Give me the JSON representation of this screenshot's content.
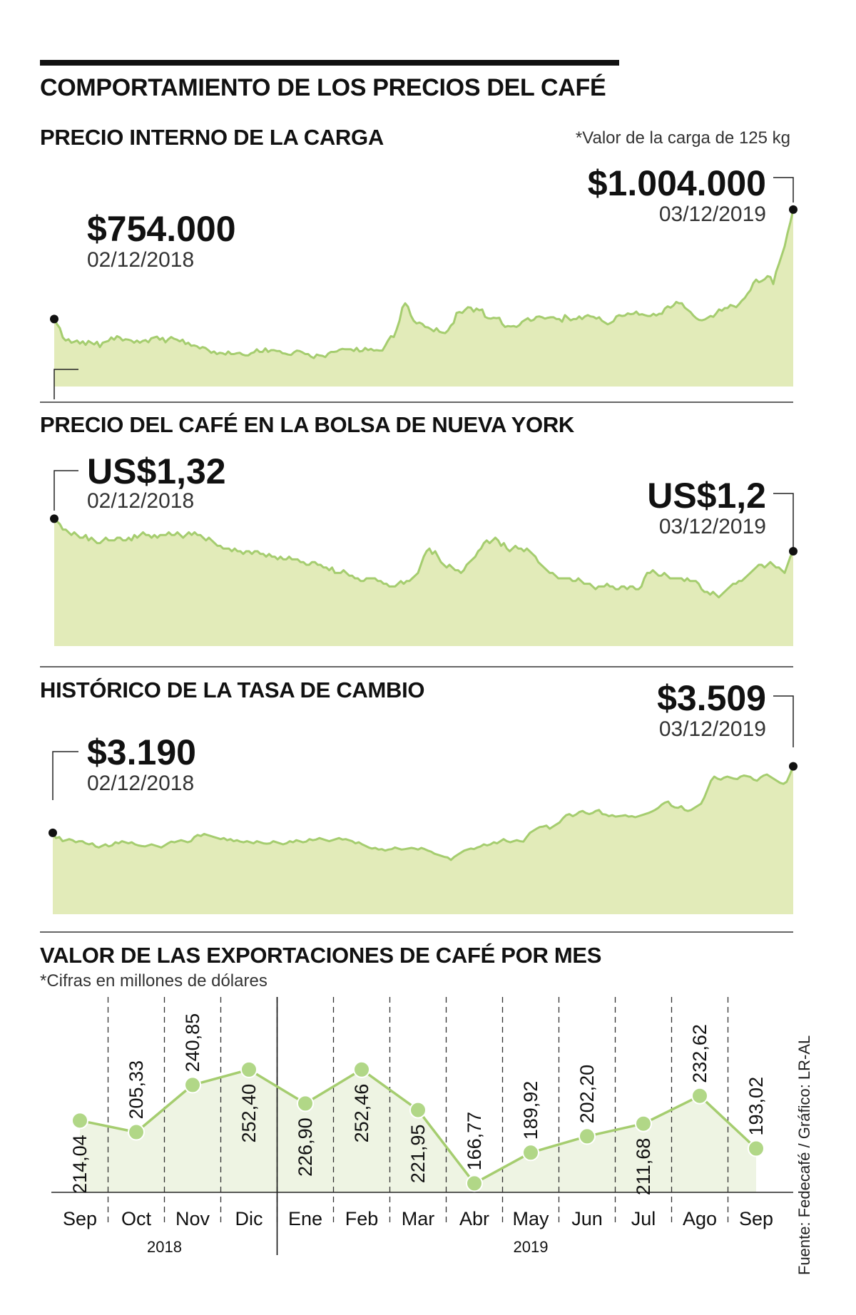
{
  "title": "COMPORTAMIENTO DE LOS PRECIOS DEL CAFÉ",
  "source": "Fuente: Fedecafé / Gráfico: LR-AL",
  "colors": {
    "fill": "#e2ebb9",
    "line": "#a5cd6f",
    "marker": "#b1d787",
    "bars_fill": "#eef4e3",
    "text": "#111111"
  },
  "charts": {
    "carga": {
      "title": "PRECIO INTERNO DE LA CARGA",
      "note": "*Valor de la carga de 125 kg",
      "start": {
        "value": "$754.000",
        "date": "02/12/2018"
      },
      "end": {
        "value": "$1.004.000",
        "date": "03/12/2019"
      }
    },
    "bolsa": {
      "title": "PRECIO DEL CAFÉ EN LA BOLSA DE NUEVA YORK",
      "start": {
        "value": "US$1,32",
        "date": "02/12/2018"
      },
      "end": {
        "value": "US$1,2",
        "date": "03/12/2019"
      }
    },
    "tasa": {
      "title": "HISTÓRICO DE LA TASA DE CAMBIO",
      "start": {
        "value": "$3.190",
        "date": "02/12/2018"
      },
      "end": {
        "value": "$3.509",
        "date": "03/12/2019"
      }
    },
    "exportaciones": {
      "title": "VALOR DE LAS EXPORTACIONES DE CAFÉ POR MES",
      "note": "*Cifras en millones de dólares"
    }
  },
  "chart_data": [
    {
      "type": "area",
      "title": "PRECIO INTERNO DE LA CARGA",
      "x_start": "02/12/2018",
      "x_end": "03/12/2019",
      "ylim": [
        600000,
        1020000
      ],
      "values": [
        754000,
        742000,
        733000,
        712000,
        705000,
        708000,
        700000,
        702000,
        705000,
        698000,
        703000,
        695000,
        704000,
        700000,
        696000,
        702000,
        690000,
        700000,
        702000,
        704000,
        712000,
        707000,
        715000,
        712000,
        705000,
        708000,
        707000,
        705000,
        700000,
        705000,
        700000,
        704000,
        706000,
        701000,
        710000,
        712000,
        714000,
        707000,
        711000,
        701000,
        708000,
        713000,
        709000,
        707000,
        703000,
        707000,
        697000,
        700000,
        693000,
        694000,
        692000,
        687000,
        690000,
        688000,
        683000,
        677000,
        680000,
        674000,
        677000,
        676000,
        673000,
        680000,
        674000,
        674000,
        676000,
        677000,
        673000,
        671000,
        671000,
        676000,
        678000,
        685000,
        679000,
        679000,
        687000,
        679000,
        683000,
        683000,
        681000,
        681000,
        676000,
        675000,
        673000,
        672000,
        678000,
        682000,
        681000,
        678000,
        674000,
        674000,
        668000,
        665000,
        673000,
        671000,
        670000,
        667000,
        675000,
        679000,
        679000,
        680000,
        684000,
        686000,
        685000,
        685000,
        685000,
        681000,
        688000,
        680000,
        681000,
        688000,
        683000,
        686000,
        682000,
        683000,
        682000,
        682000,
        693000,
        705000,
        715000,
        713000,
        730000,
        750000,
        780000,
        790000,
        782000,
        762000,
        750000,
        744000,
        746000,
        743000,
        736000,
        735000,
        731000,
        726000,
        733000,
        725000,
        723000,
        722000,
        728000,
        739000,
        745000,
        768000,
        770000,
        768000,
        775000,
        781000,
        780000,
        771000,
        778000,
        774000,
        776000,
        759000,
        756000,
        755000,
        757000,
        756000,
        757000,
        743000,
        736000,
        738000,
        737000,
        738000,
        736000,
        740000,
        748000,
        752000,
        756000,
        750000,
        752000,
        759000,
        760000,
        758000,
        755000,
        757000,
        758000,
        758000,
        754000,
        754000,
        748000,
        763000,
        757000,
        751000,
        754000,
        754000,
        760000,
        754000,
        760000,
        763000,
        760000,
        759000,
        755000,
        758000,
        750000,
        746000,
        742000,
        745000,
        749000,
        760000,
        763000,
        761000,
        762000,
        767000,
        765000,
        766000,
        771000,
        764000,
        765000,
        763000,
        761000,
        761000,
        766000,
        762000,
        766000,
        766000,
        778000,
        783000,
        780000,
        785000,
        793000,
        790000,
        790000,
        780000,
        775000,
        770000,
        762000,
        756000,
        752000,
        751000,
        753000,
        757000,
        761000,
        759000,
        767000,
        776000,
        773000,
        779000,
        779000,
        786000,
        784000,
        781000,
        788000,
        796000,
        802000,
        812000,
        820000,
        836000,
        844000,
        838000,
        841000,
        845000,
        852000,
        850000,
        834000,
        862000,
        880000,
        900000,
        920000,
        950000,
        975000,
        1004000
      ]
    },
    {
      "type": "area",
      "title": "PRECIO DEL CAFÉ EN LA BOLSA DE NUEVA YORK",
      "x_start": "02/12/2018",
      "x_end": "03/12/2019",
      "ylim": [
        0.85,
        1.35
      ],
      "values": [
        1.32,
        1.31,
        1.3,
        1.28,
        1.28,
        1.27,
        1.26,
        1.27,
        1.26,
        1.25,
        1.25,
        1.26,
        1.24,
        1.25,
        1.24,
        1.23,
        1.23,
        1.24,
        1.25,
        1.24,
        1.24,
        1.24,
        1.25,
        1.25,
        1.24,
        1.24,
        1.25,
        1.24,
        1.26,
        1.25,
        1.26,
        1.27,
        1.26,
        1.26,
        1.25,
        1.26,
        1.25,
        1.26,
        1.26,
        1.26,
        1.27,
        1.26,
        1.26,
        1.27,
        1.26,
        1.25,
        1.26,
        1.27,
        1.26,
        1.27,
        1.26,
        1.26,
        1.25,
        1.24,
        1.25,
        1.24,
        1.23,
        1.22,
        1.22,
        1.21,
        1.21,
        1.21,
        1.2,
        1.21,
        1.2,
        1.2,
        1.19,
        1.2,
        1.2,
        1.19,
        1.2,
        1.2,
        1.19,
        1.19,
        1.18,
        1.19,
        1.18,
        1.18,
        1.17,
        1.18,
        1.17,
        1.17,
        1.18,
        1.17,
        1.17,
        1.17,
        1.16,
        1.16,
        1.15,
        1.15,
        1.16,
        1.16,
        1.15,
        1.15,
        1.14,
        1.14,
        1.13,
        1.14,
        1.12,
        1.12,
        1.12,
        1.13,
        1.12,
        1.11,
        1.11,
        1.1,
        1.1,
        1.09,
        1.09,
        1.1,
        1.1,
        1.1,
        1.1,
        1.09,
        1.09,
        1.08,
        1.08,
        1.07,
        1.07,
        1.07,
        1.08,
        1.09,
        1.08,
        1.09,
        1.09,
        1.1,
        1.11,
        1.12,
        1.15,
        1.18,
        1.2,
        1.21,
        1.19,
        1.2,
        1.18,
        1.16,
        1.15,
        1.14,
        1.15,
        1.14,
        1.13,
        1.13,
        1.12,
        1.13,
        1.15,
        1.16,
        1.17,
        1.18,
        1.2,
        1.21,
        1.23,
        1.24,
        1.23,
        1.24,
        1.25,
        1.24,
        1.22,
        1.23,
        1.21,
        1.2,
        1.21,
        1.22,
        1.21,
        1.21,
        1.2,
        1.21,
        1.2,
        1.19,
        1.18,
        1.16,
        1.15,
        1.14,
        1.13,
        1.12,
        1.12,
        1.11,
        1.1,
        1.1,
        1.1,
        1.1,
        1.1,
        1.09,
        1.09,
        1.1,
        1.09,
        1.08,
        1.08,
        1.08,
        1.07,
        1.06,
        1.07,
        1.07,
        1.07,
        1.08,
        1.07,
        1.07,
        1.06,
        1.06,
        1.07,
        1.07,
        1.06,
        1.07,
        1.07,
        1.06,
        1.06,
        1.07,
        1.1,
        1.12,
        1.12,
        1.13,
        1.12,
        1.11,
        1.11,
        1.12,
        1.11,
        1.1,
        1.1,
        1.1,
        1.1,
        1.1,
        1.09,
        1.1,
        1.09,
        1.09,
        1.09,
        1.08,
        1.06,
        1.05,
        1.05,
        1.04,
        1.05,
        1.04,
        1.03,
        1.04,
        1.05,
        1.06,
        1.07,
        1.08,
        1.08,
        1.09,
        1.09,
        1.1,
        1.11,
        1.12,
        1.13,
        1.14,
        1.15,
        1.15,
        1.14,
        1.15,
        1.16,
        1.15,
        1.14,
        1.14,
        1.13,
        1.12,
        1.15,
        1.18,
        1.2
      ]
    },
    {
      "type": "area",
      "title": "HISTÓRICO DE LA TASA DE CAMBIO",
      "x_start": "02/12/2018",
      "x_end": "03/12/2019",
      "ylim": [
        2800,
        3600
      ],
      "values": [
        3190,
        3165,
        3170,
        3150,
        3155,
        3160,
        3155,
        3145,
        3150,
        3150,
        3140,
        3135,
        3140,
        3125,
        3120,
        3128,
        3135,
        3125,
        3130,
        3145,
        3140,
        3150,
        3145,
        3140,
        3145,
        3135,
        3130,
        3127,
        3125,
        3130,
        3135,
        3130,
        3125,
        3120,
        3130,
        3140,
        3148,
        3145,
        3150,
        3155,
        3150,
        3145,
        3150,
        3170,
        3180,
        3175,
        3185,
        3180,
        3175,
        3170,
        3165,
        3160,
        3165,
        3155,
        3160,
        3150,
        3155,
        3148,
        3145,
        3150,
        3145,
        3140,
        3150,
        3145,
        3140,
        3138,
        3140,
        3150,
        3145,
        3140,
        3135,
        3140,
        3150,
        3145,
        3155,
        3150,
        3145,
        3148,
        3160,
        3155,
        3158,
        3165,
        3160,
        3155,
        3150,
        3155,
        3160,
        3165,
        3158,
        3160,
        3155,
        3150,
        3140,
        3145,
        3135,
        3128,
        3120,
        3115,
        3118,
        3110,
        3112,
        3105,
        3110,
        3112,
        3120,
        3115,
        3110,
        3112,
        3115,
        3118,
        3115,
        3110,
        3118,
        3112,
        3105,
        3100,
        3090,
        3085,
        3080,
        3075,
        3072,
        3060,
        3075,
        3085,
        3095,
        3105,
        3110,
        3115,
        3112,
        3120,
        3125,
        3135,
        3130,
        3135,
        3145,
        3140,
        3150,
        3160,
        3150,
        3145,
        3150,
        3155,
        3150,
        3148,
        3170,
        3190,
        3200,
        3210,
        3218,
        3220,
        3225,
        3210,
        3220,
        3230,
        3240,
        3260,
        3275,
        3280,
        3270,
        3278,
        3290,
        3295,
        3285,
        3280,
        3285,
        3295,
        3300,
        3280,
        3278,
        3270,
        3275,
        3268,
        3270,
        3272,
        3275,
        3268,
        3270,
        3265,
        3270,
        3275,
        3280,
        3285,
        3292,
        3300,
        3310,
        3325,
        3335,
        3340,
        3320,
        3312,
        3310,
        3318,
        3300,
        3295,
        3300,
        3310,
        3320,
        3330,
        3360,
        3400,
        3440,
        3460,
        3450,
        3445,
        3455,
        3460,
        3455,
        3450,
        3448,
        3460,
        3465,
        3462,
        3458,
        3445,
        3440,
        3455,
        3465,
        3470,
        3460,
        3450,
        3440,
        3430,
        3425,
        3435,
        3470,
        3509
      ]
    },
    {
      "type": "line",
      "title": "VALOR DE LAS EXPORTACIONES DE CAFÉ POR MES",
      "categories": [
        "Sep",
        "Oct",
        "Nov",
        "Dic",
        "Ene",
        "Feb",
        "Mar",
        "Abr",
        "May",
        "Jun",
        "Jul",
        "Ago",
        "Sep"
      ],
      "labels": [
        "214,04",
        "205,33",
        "240,85",
        "252,40",
        "226,90",
        "252,46",
        "221,95",
        "166,77",
        "189,92",
        "202,20",
        "211,68",
        "232,62",
        "193,02"
      ],
      "values": [
        214.04,
        205.33,
        240.85,
        252.4,
        226.9,
        252.46,
        221.95,
        166.77,
        189.92,
        202.2,
        211.68,
        232.62,
        193.02
      ],
      "year_labels": [
        "2018",
        "2019"
      ],
      "ylim": [
        160,
        262
      ]
    }
  ]
}
